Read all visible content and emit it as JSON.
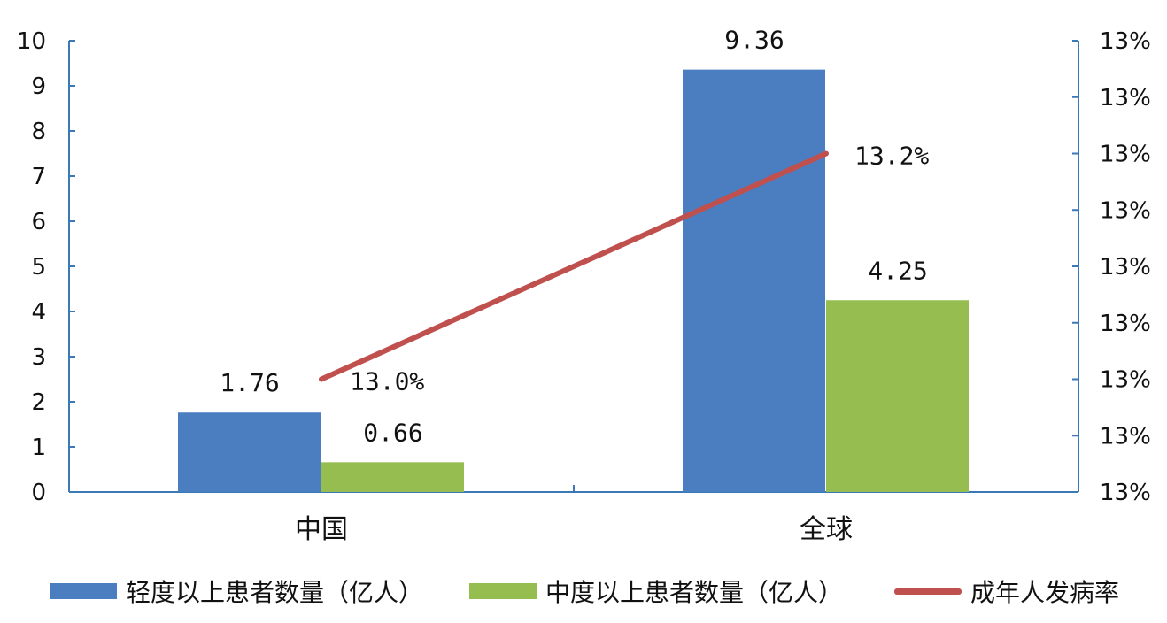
{
  "chart_data": {
    "type": "bar",
    "categories": [
      "中国",
      "全球"
    ],
    "series": [
      {
        "name": "轻度以上患者数量（亿人）",
        "type": "bar",
        "axis": "left",
        "color": "#4a7ec1",
        "values": [
          1.76,
          9.36
        ],
        "labels": [
          "1.76",
          "9.36"
        ]
      },
      {
        "name": "中度以上患者数量（亿人）",
        "type": "bar",
        "axis": "left",
        "color": "#95bd4f",
        "values": [
          0.66,
          4.25
        ],
        "labels": [
          "0.66",
          "4.25"
        ]
      },
      {
        "name": "成年人发病率",
        "type": "line",
        "axis": "right",
        "color": "#c0504d",
        "values": [
          13.0,
          13.2
        ],
        "labels": [
          "13.0%",
          "13.2%"
        ]
      }
    ],
    "y_left": {
      "ylim": [
        0,
        10
      ],
      "ticks": [
        "0",
        "1",
        "2",
        "3",
        "4",
        "5",
        "6",
        "7",
        "8",
        "9",
        "10"
      ]
    },
    "y_right": {
      "ylim": [
        12.9,
        13.3
      ],
      "ticks": [
        "13%",
        "13%",
        "13%",
        "13%",
        "13%",
        "13%",
        "13%",
        "13%",
        "13%"
      ]
    },
    "grid": false,
    "legend_position": "bottom"
  }
}
